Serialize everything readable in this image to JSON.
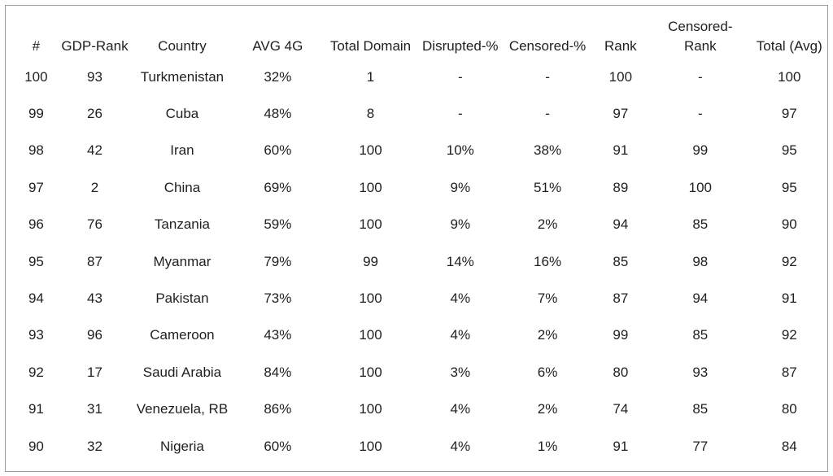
{
  "table": {
    "headers": [
      "#",
      "GDP-Rank",
      "Country",
      "AVG 4G",
      "Total Domain",
      "Disrupted-%",
      "Censored-%",
      "Rank",
      "Censored-\nRank",
      "Total (Avg)"
    ],
    "rows": [
      [
        "100",
        "93",
        "Turkmenistan",
        "32%",
        "1",
        "-",
        "-",
        "100",
        "-",
        "100"
      ],
      [
        "99",
        "26",
        "Cuba",
        "48%",
        "8",
        "-",
        "-",
        "97",
        "-",
        "97"
      ],
      [
        "98",
        "42",
        "Iran",
        "60%",
        "100",
        "10%",
        "38%",
        "91",
        "99",
        "95"
      ],
      [
        "97",
        "2",
        "China",
        "69%",
        "100",
        "9%",
        "51%",
        "89",
        "100",
        "95"
      ],
      [
        "96",
        "76",
        "Tanzania",
        "59%",
        "100",
        "9%",
        "2%",
        "94",
        "85",
        "90"
      ],
      [
        "95",
        "87",
        "Myanmar",
        "79%",
        "99",
        "14%",
        "16%",
        "85",
        "98",
        "92"
      ],
      [
        "94",
        "43",
        "Pakistan",
        "73%",
        "100",
        "4%",
        "7%",
        "87",
        "94",
        "91"
      ],
      [
        "93",
        "96",
        "Cameroon",
        "43%",
        "100",
        "4%",
        "2%",
        "99",
        "85",
        "92"
      ],
      [
        "92",
        "17",
        "Saudi Arabia",
        "84%",
        "100",
        "3%",
        "6%",
        "80",
        "93",
        "87"
      ],
      [
        "91",
        "31",
        "Venezuela, RB",
        "86%",
        "100",
        "4%",
        "2%",
        "74",
        "85",
        "80"
      ],
      [
        "90",
        "32",
        "Nigeria",
        "60%",
        "100",
        "4%",
        "1%",
        "91",
        "77",
        "84"
      ]
    ]
  }
}
